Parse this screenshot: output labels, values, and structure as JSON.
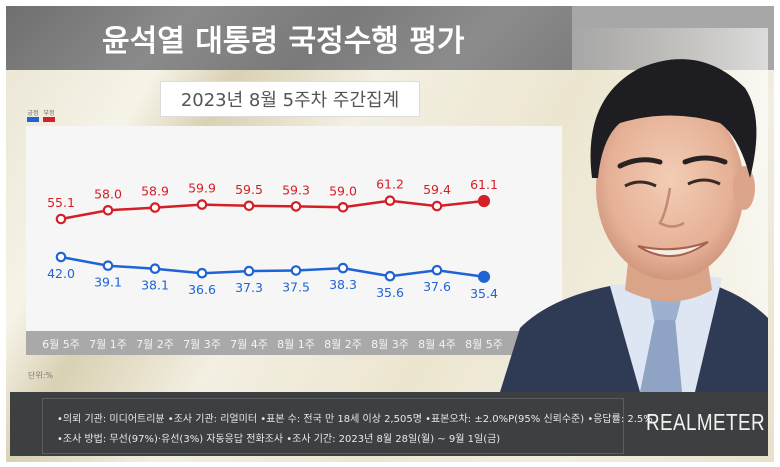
{
  "header": {
    "title": "윤석열 대통령 국정수행 평가",
    "subtitle": "2023년 8월 5주차 주간집계"
  },
  "legend": [
    {
      "label": "긍정",
      "color": "#1f63d6"
    },
    {
      "label": "부정",
      "color": "#d41f26"
    }
  ],
  "unit_label": "단위:%",
  "chart_data": {
    "type": "line",
    "title": "윤석열 대통령 국정수행 평가",
    "subtitle": "2023년 8월 5주차 주간집계",
    "xlabel": "",
    "ylabel": "단위:%",
    "categories": [
      "6월 5주",
      "7월 1주",
      "7월 2주",
      "7월 3주",
      "7월 4주",
      "8월 1주",
      "8월 2주",
      "8월 3주",
      "8월 4주",
      "8월 5주"
    ],
    "series": [
      {
        "name": "부정",
        "color": "#d41f26",
        "values": [
          55.1,
          58.0,
          58.9,
          59.9,
          59.5,
          59.3,
          59.0,
          61.2,
          59.4,
          61.1
        ]
      },
      {
        "name": "긍정",
        "color": "#1f63d6",
        "values": [
          42.0,
          39.1,
          38.1,
          36.6,
          37.3,
          37.5,
          38.3,
          35.6,
          37.6,
          35.4
        ]
      }
    ],
    "legend_position": "top-left",
    "grid": false,
    "data_labels": true
  },
  "footer": {
    "line1": "•의뢰 기관: 미디어트리뷴 •조사 기관: 리얼미터 •표본 수: 전국 만 18세 이상 2,505명 •표본오차: ±2.0%P(95% 신뢰수준) •응답률: 2.5%",
    "line2": "•조사 방법: 무선(97%)·유선(3%) 자동응답 전화조사 •조사 기간: 2023년 8월 28일(월) ~ 9월 1일(금)",
    "brand": "REALMETER"
  }
}
